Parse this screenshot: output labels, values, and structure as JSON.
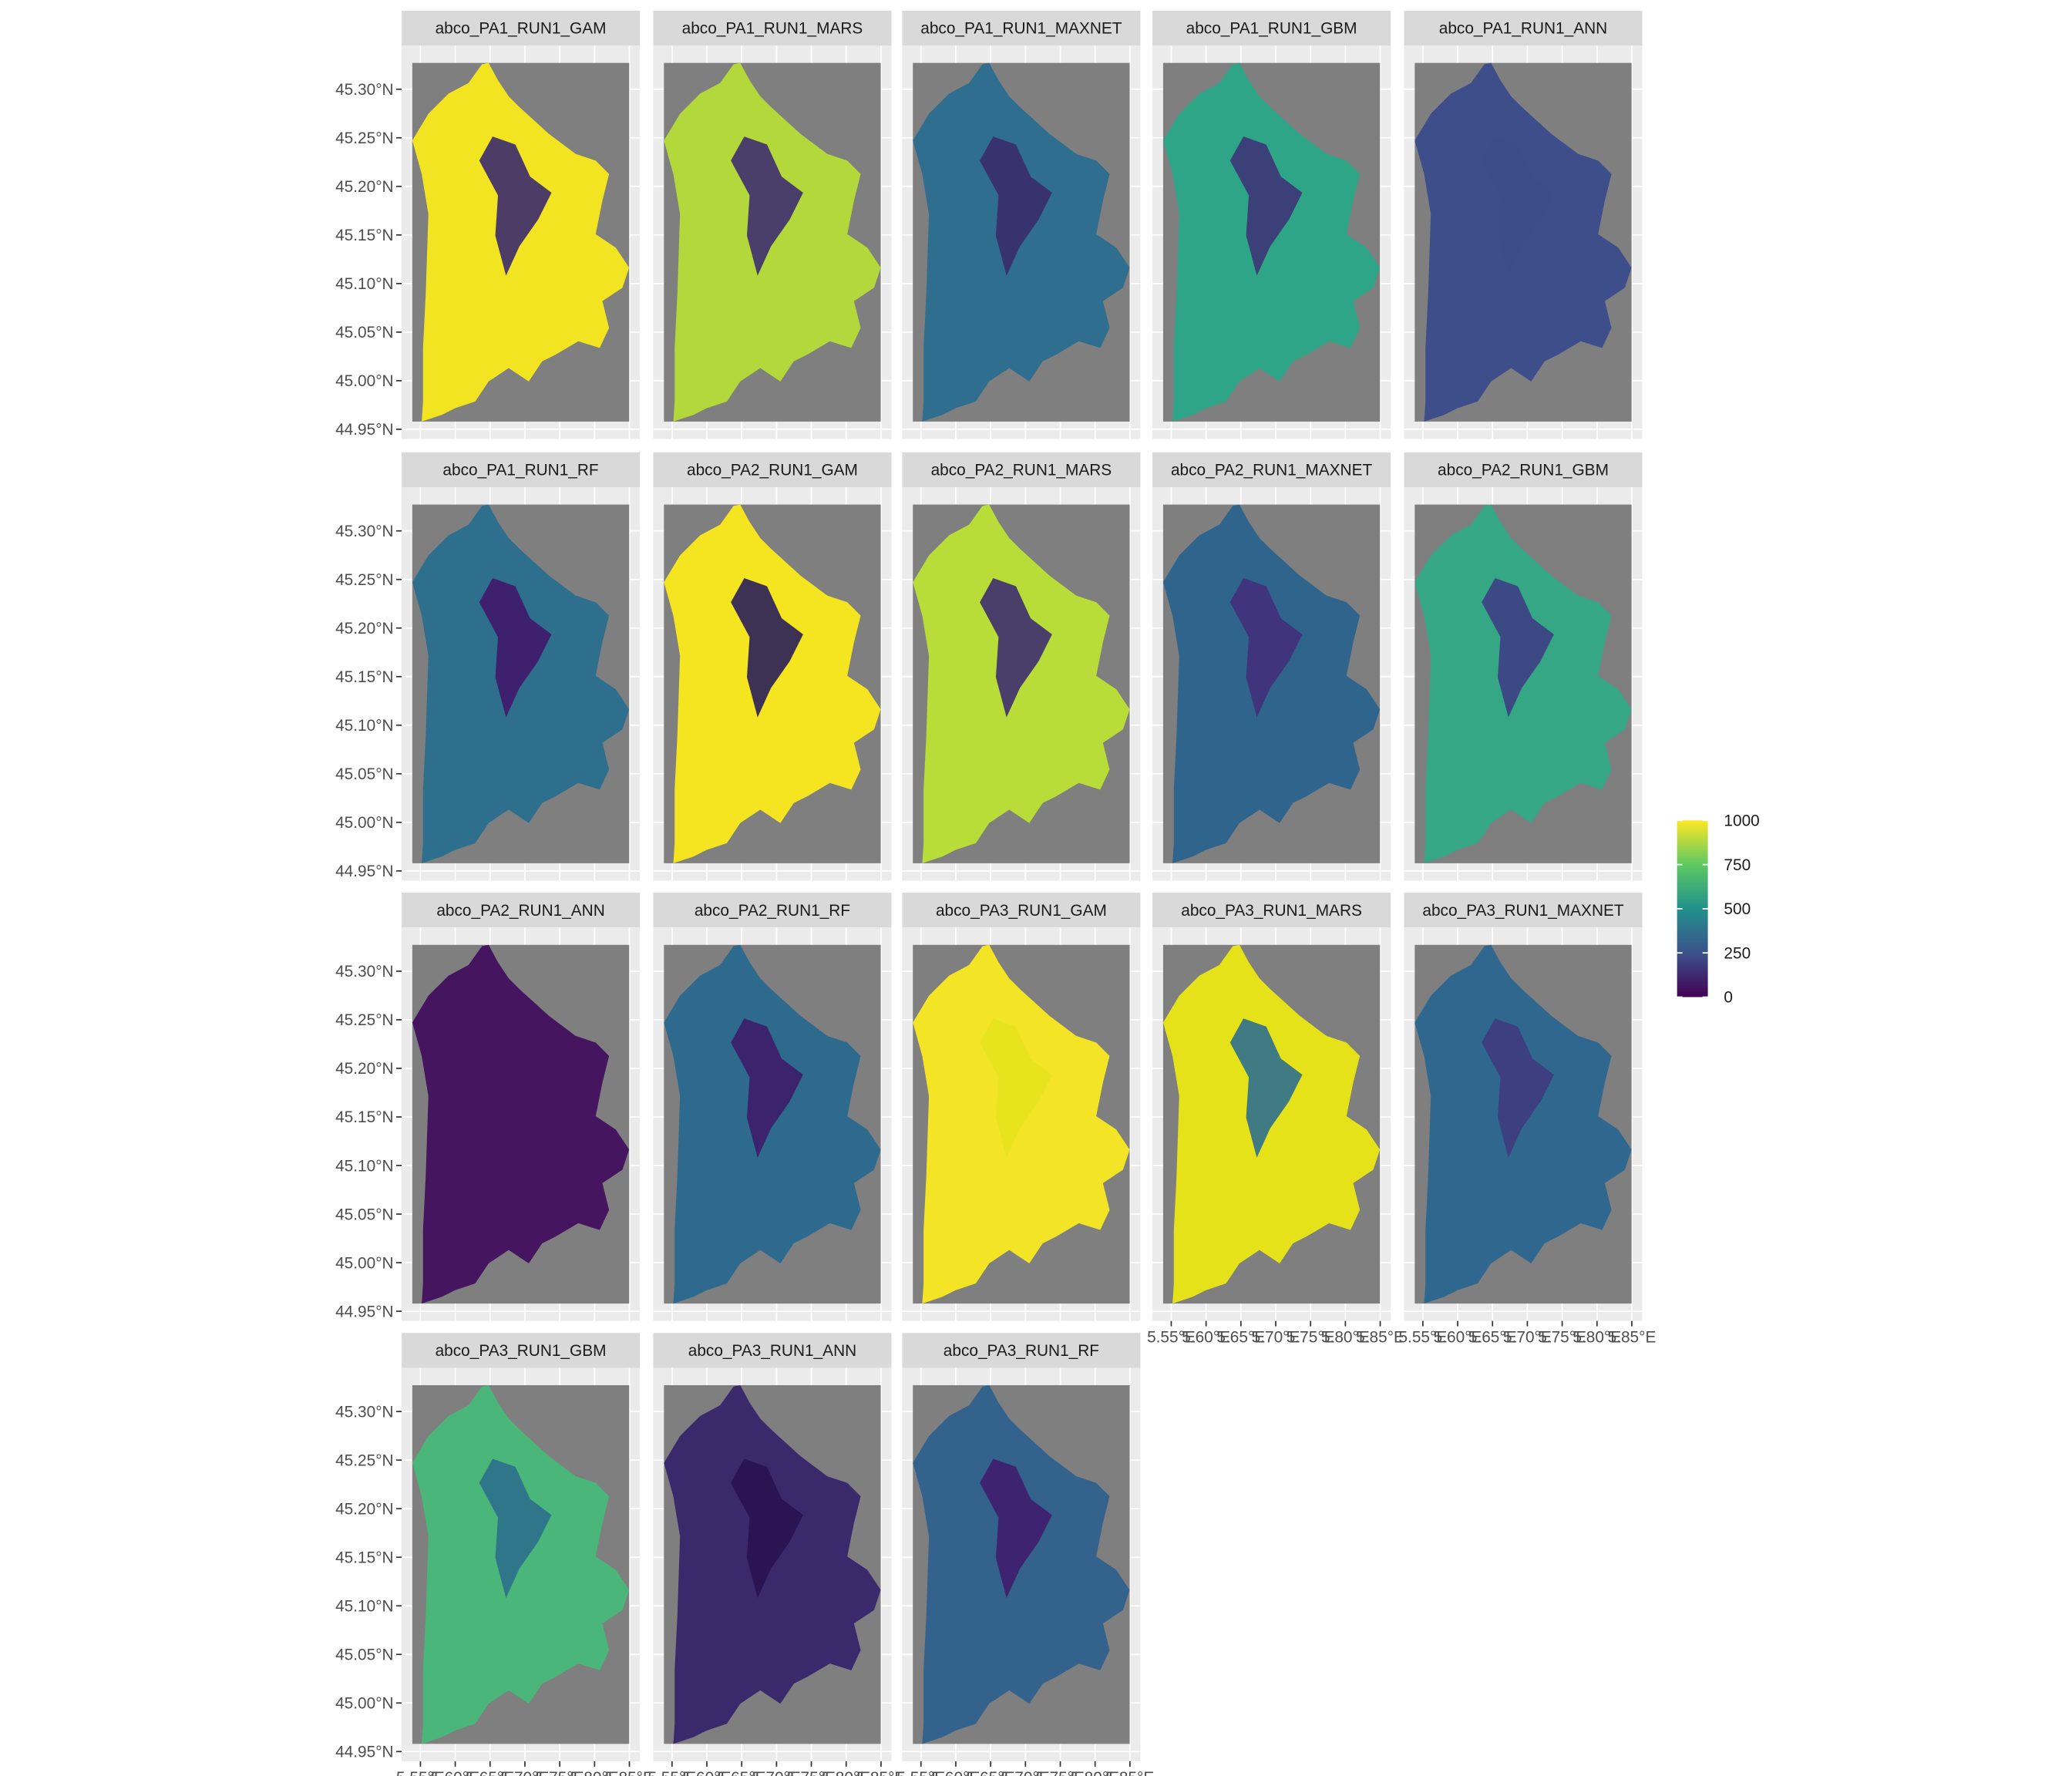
{
  "chart_data": {
    "type": "raster-facets",
    "ncol": 5,
    "panels": [
      {
        "name": "abco_PA1_RUN1_GAM",
        "color": "#f2e420",
        "patch_color": "#3b2a6e"
      },
      {
        "name": "abco_PA1_RUN1_MARS",
        "color": "#b3d83b",
        "patch_color": "#3e2f70"
      },
      {
        "name": "abco_PA1_RUN1_MAXNET",
        "color": "#2f6e8e",
        "patch_color": "#3a2b6b"
      },
      {
        "name": "abco_PA1_RUN1_GBM",
        "color": "#2fa587",
        "patch_color": "#3d3577"
      },
      {
        "name": "abco_PA1_RUN1_ANN",
        "color": "#3d4e8a",
        "patch_color": "#3d4e8a"
      },
      {
        "name": "abco_PA1_RUN1_RF",
        "color": "#2f6f8e",
        "patch_color": "#40176b"
      },
      {
        "name": "abco_PA2_RUN1_GAM",
        "color": "#f5e521",
        "patch_color": "#2a1e5a"
      },
      {
        "name": "abco_PA2_RUN1_MARS",
        "color": "#b8dc38",
        "patch_color": "#3e2d71"
      },
      {
        "name": "abco_PA2_RUN1_MAXNET",
        "color": "#2f648d",
        "patch_color": "#43307a"
      },
      {
        "name": "abco_PA2_RUN1_GBM",
        "color": "#35a785",
        "patch_color": "#3e3f84"
      },
      {
        "name": "abco_PA2_RUN1_ANN",
        "color": "#45155f",
        "patch_color": "#45155f"
      },
      {
        "name": "abco_PA2_RUN1_RF",
        "color": "#2d6a8d",
        "patch_color": "#3d1c6a"
      },
      {
        "name": "abco_PA3_RUN1_GAM",
        "color": "#f3e526",
        "patch_color": "#e6e31e"
      },
      {
        "name": "abco_PA3_RUN1_MARS",
        "color": "#e6e21a",
        "patch_color": "#2e6f8e"
      },
      {
        "name": "abco_PA3_RUN1_MAXNET",
        "color": "#2f678e",
        "patch_color": "#3f3b7f"
      },
      {
        "name": "abco_PA3_RUN1_GBM",
        "color": "#4bb67a",
        "patch_color": "#2c6f8c"
      },
      {
        "name": "abco_PA3_RUN1_ANN",
        "color": "#3a2a6c",
        "patch_color": "#2a1250"
      },
      {
        "name": "abco_PA3_RUN1_RF",
        "color": "#33638d",
        "patch_color": "#3f1d6d"
      }
    ],
    "xlim": [
      5.523,
      5.865
    ],
    "xticks": [
      {
        "value": 5.55,
        "label": "5.55°E"
      },
      {
        "value": 5.6,
        "label": "5.60°E"
      },
      {
        "value": 5.65,
        "label": "5.65°E"
      },
      {
        "value": 5.7,
        "label": "5.70°E"
      },
      {
        "value": 5.75,
        "label": "5.75°E"
      },
      {
        "value": 5.8,
        "label": "5.80°E"
      },
      {
        "value": 5.85,
        "label": "5.85°E"
      }
    ],
    "ylim": [
      44.94,
      45.345
    ],
    "yticks": [
      {
        "value": 44.95,
        "label": "44.95°N"
      },
      {
        "value": 45.0,
        "label": "45.00°N"
      },
      {
        "value": 45.05,
        "label": "45.05°N"
      },
      {
        "value": 45.1,
        "label": "45.10°N"
      },
      {
        "value": 45.15,
        "label": "45.15°N"
      },
      {
        "value": 45.2,
        "label": "45.20°N"
      },
      {
        "value": 45.25,
        "label": "45.25°N"
      },
      {
        "value": 45.3,
        "label": "45.30°N"
      }
    ],
    "grid": true,
    "legend": {
      "lim": [
        0,
        1000
      ],
      "ticks": [
        0,
        250,
        500,
        750,
        1000
      ],
      "colors": [
        "#440154",
        "#3b528b",
        "#21918c",
        "#5ec962",
        "#fde725"
      ]
    }
  }
}
